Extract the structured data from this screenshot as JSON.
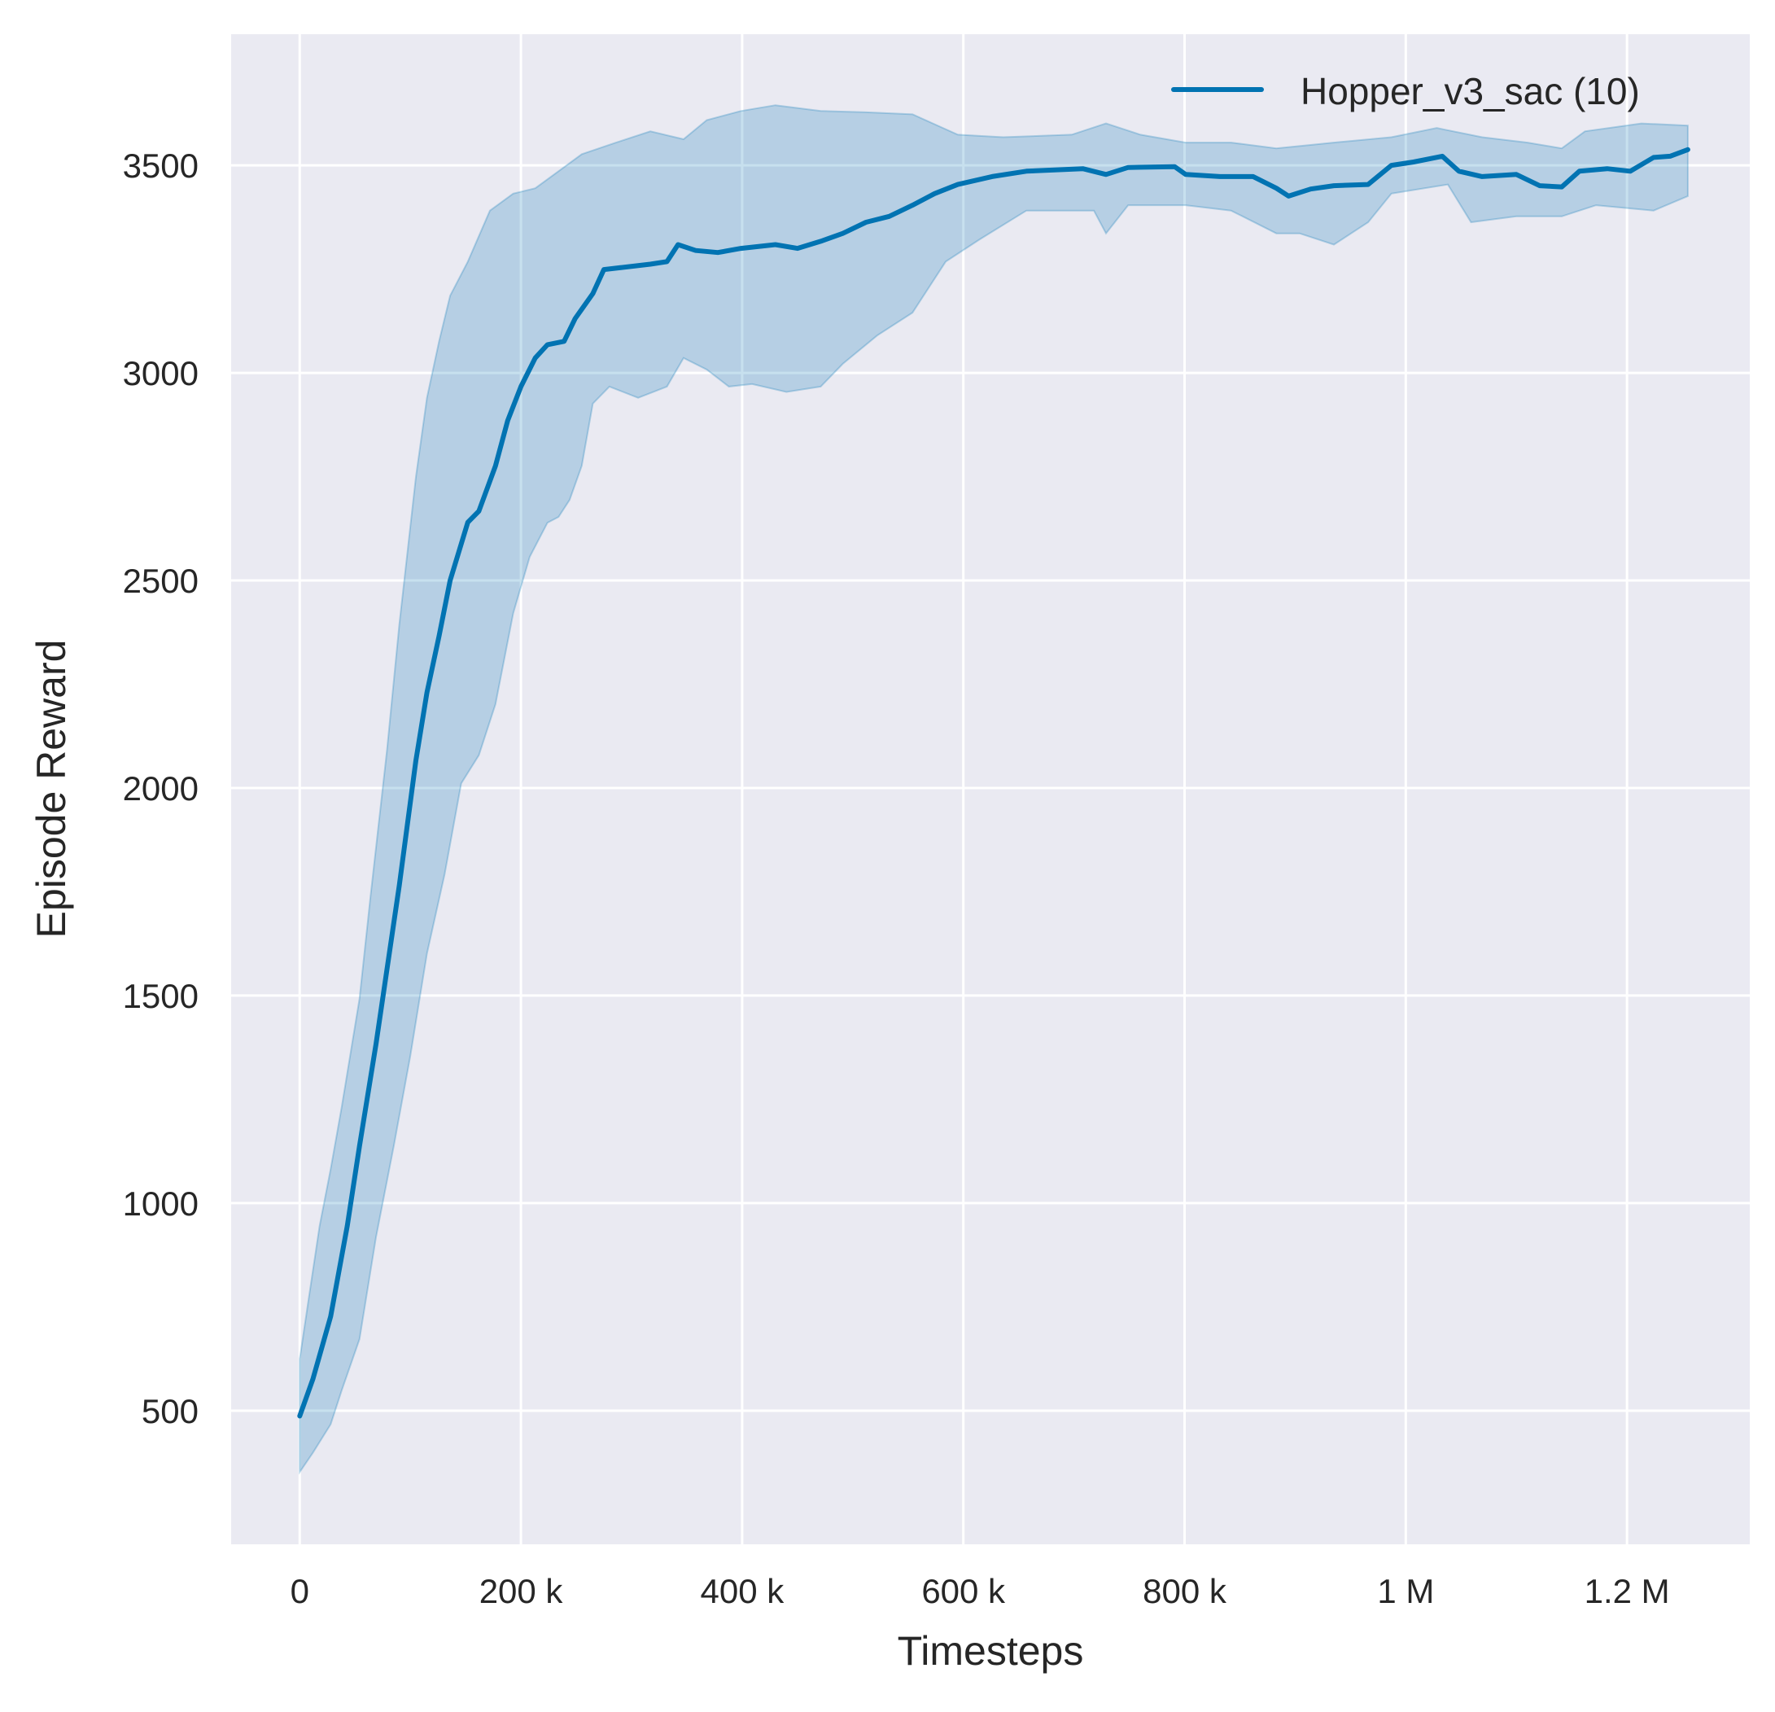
{
  "chart_data": {
    "type": "line",
    "title": "",
    "xlabel": "Timesteps",
    "ylabel": "Episode Reward",
    "xlim": [
      -62000,
      1311000
    ],
    "ylim": [
      178,
      3816
    ],
    "grid": true,
    "legend_position": "top-right",
    "x_ticks": [
      0,
      200000,
      400000,
      600000,
      800000,
      1000000,
      1200000
    ],
    "x_tick_labels": [
      "0",
      "200 k",
      "400 k",
      "600 k",
      "800 k",
      "1 M",
      "1.2 M"
    ],
    "y_ticks": [
      500,
      1000,
      1500,
      2000,
      2500,
      3000,
      3500
    ],
    "y_tick_labels": [
      "500",
      "1000",
      "1500",
      "2000",
      "2500",
      "3000",
      "3500"
    ],
    "colors": {
      "background": "#eaeaf2",
      "grid": "#ffffff",
      "line": "#0173b2"
    },
    "series": [
      {
        "name": "Hopper_v3_sac (10)",
        "mean": [
          [
            0,
            487
          ],
          [
            12000,
            577
          ],
          [
            28000,
            727
          ],
          [
            43000,
            945
          ],
          [
            54000,
            1137
          ],
          [
            69000,
            1383
          ],
          [
            90000,
            1765
          ],
          [
            105000,
            2066
          ],
          [
            115000,
            2230
          ],
          [
            126000,
            2366
          ],
          [
            136000,
            2500
          ],
          [
            152000,
            2640
          ],
          [
            162000,
            2667
          ],
          [
            177000,
            2776
          ],
          [
            188000,
            2885
          ],
          [
            200000,
            2967
          ],
          [
            213000,
            3036
          ],
          [
            224000,
            3068
          ],
          [
            239000,
            3076
          ],
          [
            249000,
            3131
          ],
          [
            265000,
            3191
          ],
          [
            275000,
            3249
          ],
          [
            291000,
            3254
          ],
          [
            317000,
            3262
          ],
          [
            332000,
            3268
          ],
          [
            342000,
            3309
          ],
          [
            358000,
            3295
          ],
          [
            378000,
            3290
          ],
          [
            399000,
            3300
          ],
          [
            430000,
            3309
          ],
          [
            450000,
            3300
          ],
          [
            471000,
            3317
          ],
          [
            491000,
            3336
          ],
          [
            512000,
            3363
          ],
          [
            533000,
            3377
          ],
          [
            554000,
            3404
          ],
          [
            574000,
            3432
          ],
          [
            595000,
            3454
          ],
          [
            626000,
            3473
          ],
          [
            657000,
            3486
          ],
          [
            708000,
            3492
          ],
          [
            729000,
            3478
          ],
          [
            749000,
            3495
          ],
          [
            791000,
            3497
          ],
          [
            801000,
            3478
          ],
          [
            832000,
            3473
          ],
          [
            862000,
            3473
          ],
          [
            883000,
            3445
          ],
          [
            894000,
            3426
          ],
          [
            914000,
            3443
          ],
          [
            935000,
            3451
          ],
          [
            966000,
            3454
          ],
          [
            987000,
            3500
          ],
          [
            1007000,
            3508
          ],
          [
            1033000,
            3522
          ],
          [
            1048000,
            3486
          ],
          [
            1069000,
            3473
          ],
          [
            1100000,
            3478
          ],
          [
            1121000,
            3451
          ],
          [
            1141000,
            3448
          ],
          [
            1157000,
            3486
          ],
          [
            1182000,
            3492
          ],
          [
            1203000,
            3486
          ],
          [
            1224000,
            3519
          ],
          [
            1239000,
            3522
          ],
          [
            1255000,
            3538
          ]
        ],
        "upper": [
          [
            0,
            625
          ],
          [
            7000,
            750
          ],
          [
            18000,
            945
          ],
          [
            28000,
            1082
          ],
          [
            38000,
            1232
          ],
          [
            54000,
            1492
          ],
          [
            64000,
            1738
          ],
          [
            79000,
            2093
          ],
          [
            90000,
            2393
          ],
          [
            105000,
            2749
          ],
          [
            115000,
            2940
          ],
          [
            126000,
            3076
          ],
          [
            136000,
            3186
          ],
          [
            152000,
            3268
          ],
          [
            172000,
            3391
          ],
          [
            193000,
            3432
          ],
          [
            213000,
            3445
          ],
          [
            234000,
            3486
          ],
          [
            255000,
            3527
          ],
          [
            286000,
            3555
          ],
          [
            317000,
            3582
          ],
          [
            347000,
            3563
          ],
          [
            368000,
            3609
          ],
          [
            399000,
            3631
          ],
          [
            430000,
            3645
          ],
          [
            471000,
            3631
          ],
          [
            512000,
            3628
          ],
          [
            554000,
            3623
          ],
          [
            595000,
            3574
          ],
          [
            636000,
            3568
          ],
          [
            698000,
            3574
          ],
          [
            729000,
            3601
          ],
          [
            760000,
            3574
          ],
          [
            801000,
            3555
          ],
          [
            842000,
            3555
          ],
          [
            883000,
            3541
          ],
          [
            935000,
            3555
          ],
          [
            987000,
            3568
          ],
          [
            1028000,
            3590
          ],
          [
            1069000,
            3568
          ],
          [
            1110000,
            3555
          ],
          [
            1141000,
            3541
          ],
          [
            1162000,
            3582
          ],
          [
            1213000,
            3601
          ],
          [
            1255000,
            3596
          ]
        ],
        "lower": [
          [
            0,
            352
          ],
          [
            12000,
            399
          ],
          [
            28000,
            467
          ],
          [
            38000,
            549
          ],
          [
            54000,
            672
          ],
          [
            69000,
            918
          ],
          [
            85000,
            1137
          ],
          [
            100000,
            1355
          ],
          [
            115000,
            1601
          ],
          [
            131000,
            1792
          ],
          [
            146000,
            2011
          ],
          [
            162000,
            2079
          ],
          [
            177000,
            2202
          ],
          [
            193000,
            2421
          ],
          [
            208000,
            2557
          ],
          [
            224000,
            2639
          ],
          [
            234000,
            2653
          ],
          [
            244000,
            2694
          ],
          [
            255000,
            2776
          ],
          [
            265000,
            2926
          ],
          [
            280000,
            2967
          ],
          [
            306000,
            2940
          ],
          [
            332000,
            2967
          ],
          [
            347000,
            3036
          ],
          [
            368000,
            3008
          ],
          [
            388000,
            2967
          ],
          [
            409000,
            2973
          ],
          [
            440000,
            2954
          ],
          [
            471000,
            2967
          ],
          [
            491000,
            3022
          ],
          [
            522000,
            3090
          ],
          [
            554000,
            3145
          ],
          [
            584000,
            3268
          ],
          [
            615000,
            3322
          ],
          [
            657000,
            3391
          ],
          [
            718000,
            3391
          ],
          [
            729000,
            3336
          ],
          [
            749000,
            3404
          ],
          [
            801000,
            3404
          ],
          [
            842000,
            3391
          ],
          [
            883000,
            3336
          ],
          [
            904000,
            3336
          ],
          [
            935000,
            3309
          ],
          [
            966000,
            3363
          ],
          [
            987000,
            3432
          ],
          [
            1038000,
            3454
          ],
          [
            1059000,
            3363
          ],
          [
            1100000,
            3377
          ],
          [
            1141000,
            3377
          ],
          [
            1172000,
            3404
          ],
          [
            1224000,
            3391
          ],
          [
            1255000,
            3426
          ]
        ]
      }
    ]
  }
}
